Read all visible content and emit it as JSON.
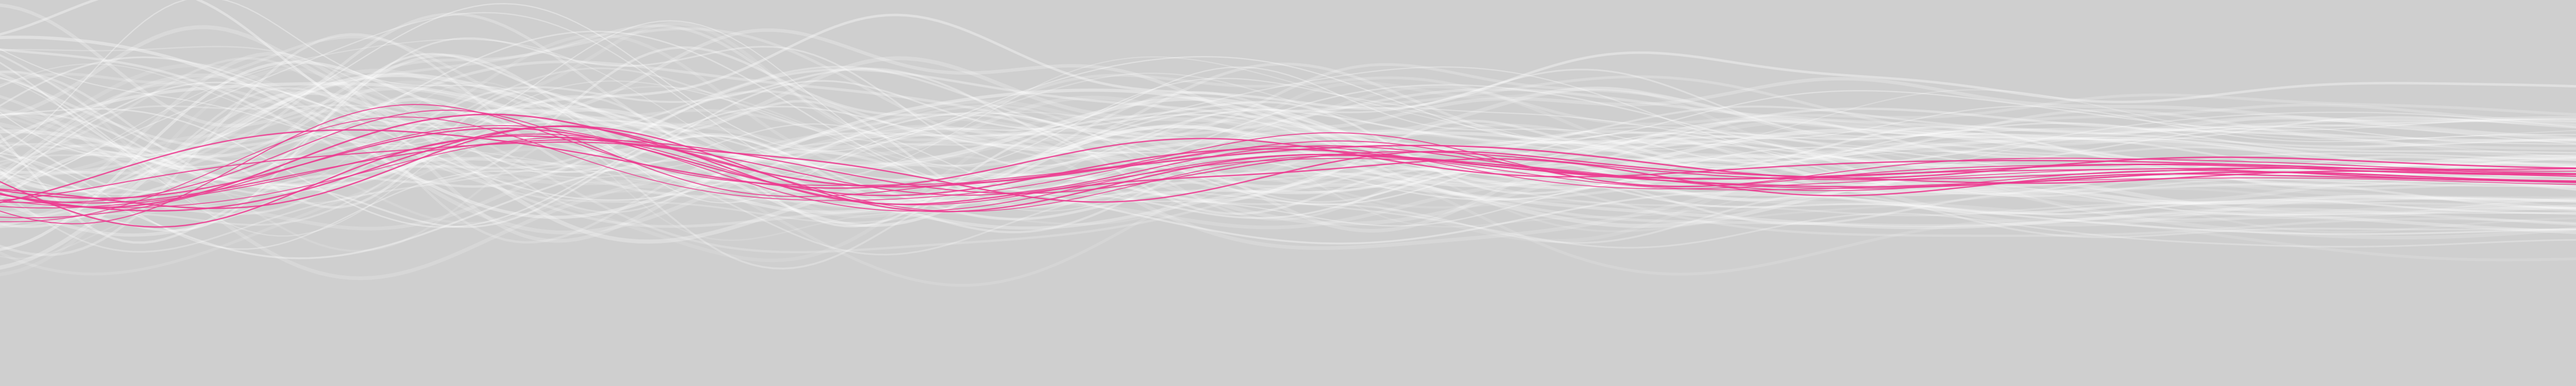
{
  "artwork": {
    "background_color": "#cfcfcf",
    "pink_line_color": "#ec3d91",
    "white_line_color": "#ffffff"
  }
}
